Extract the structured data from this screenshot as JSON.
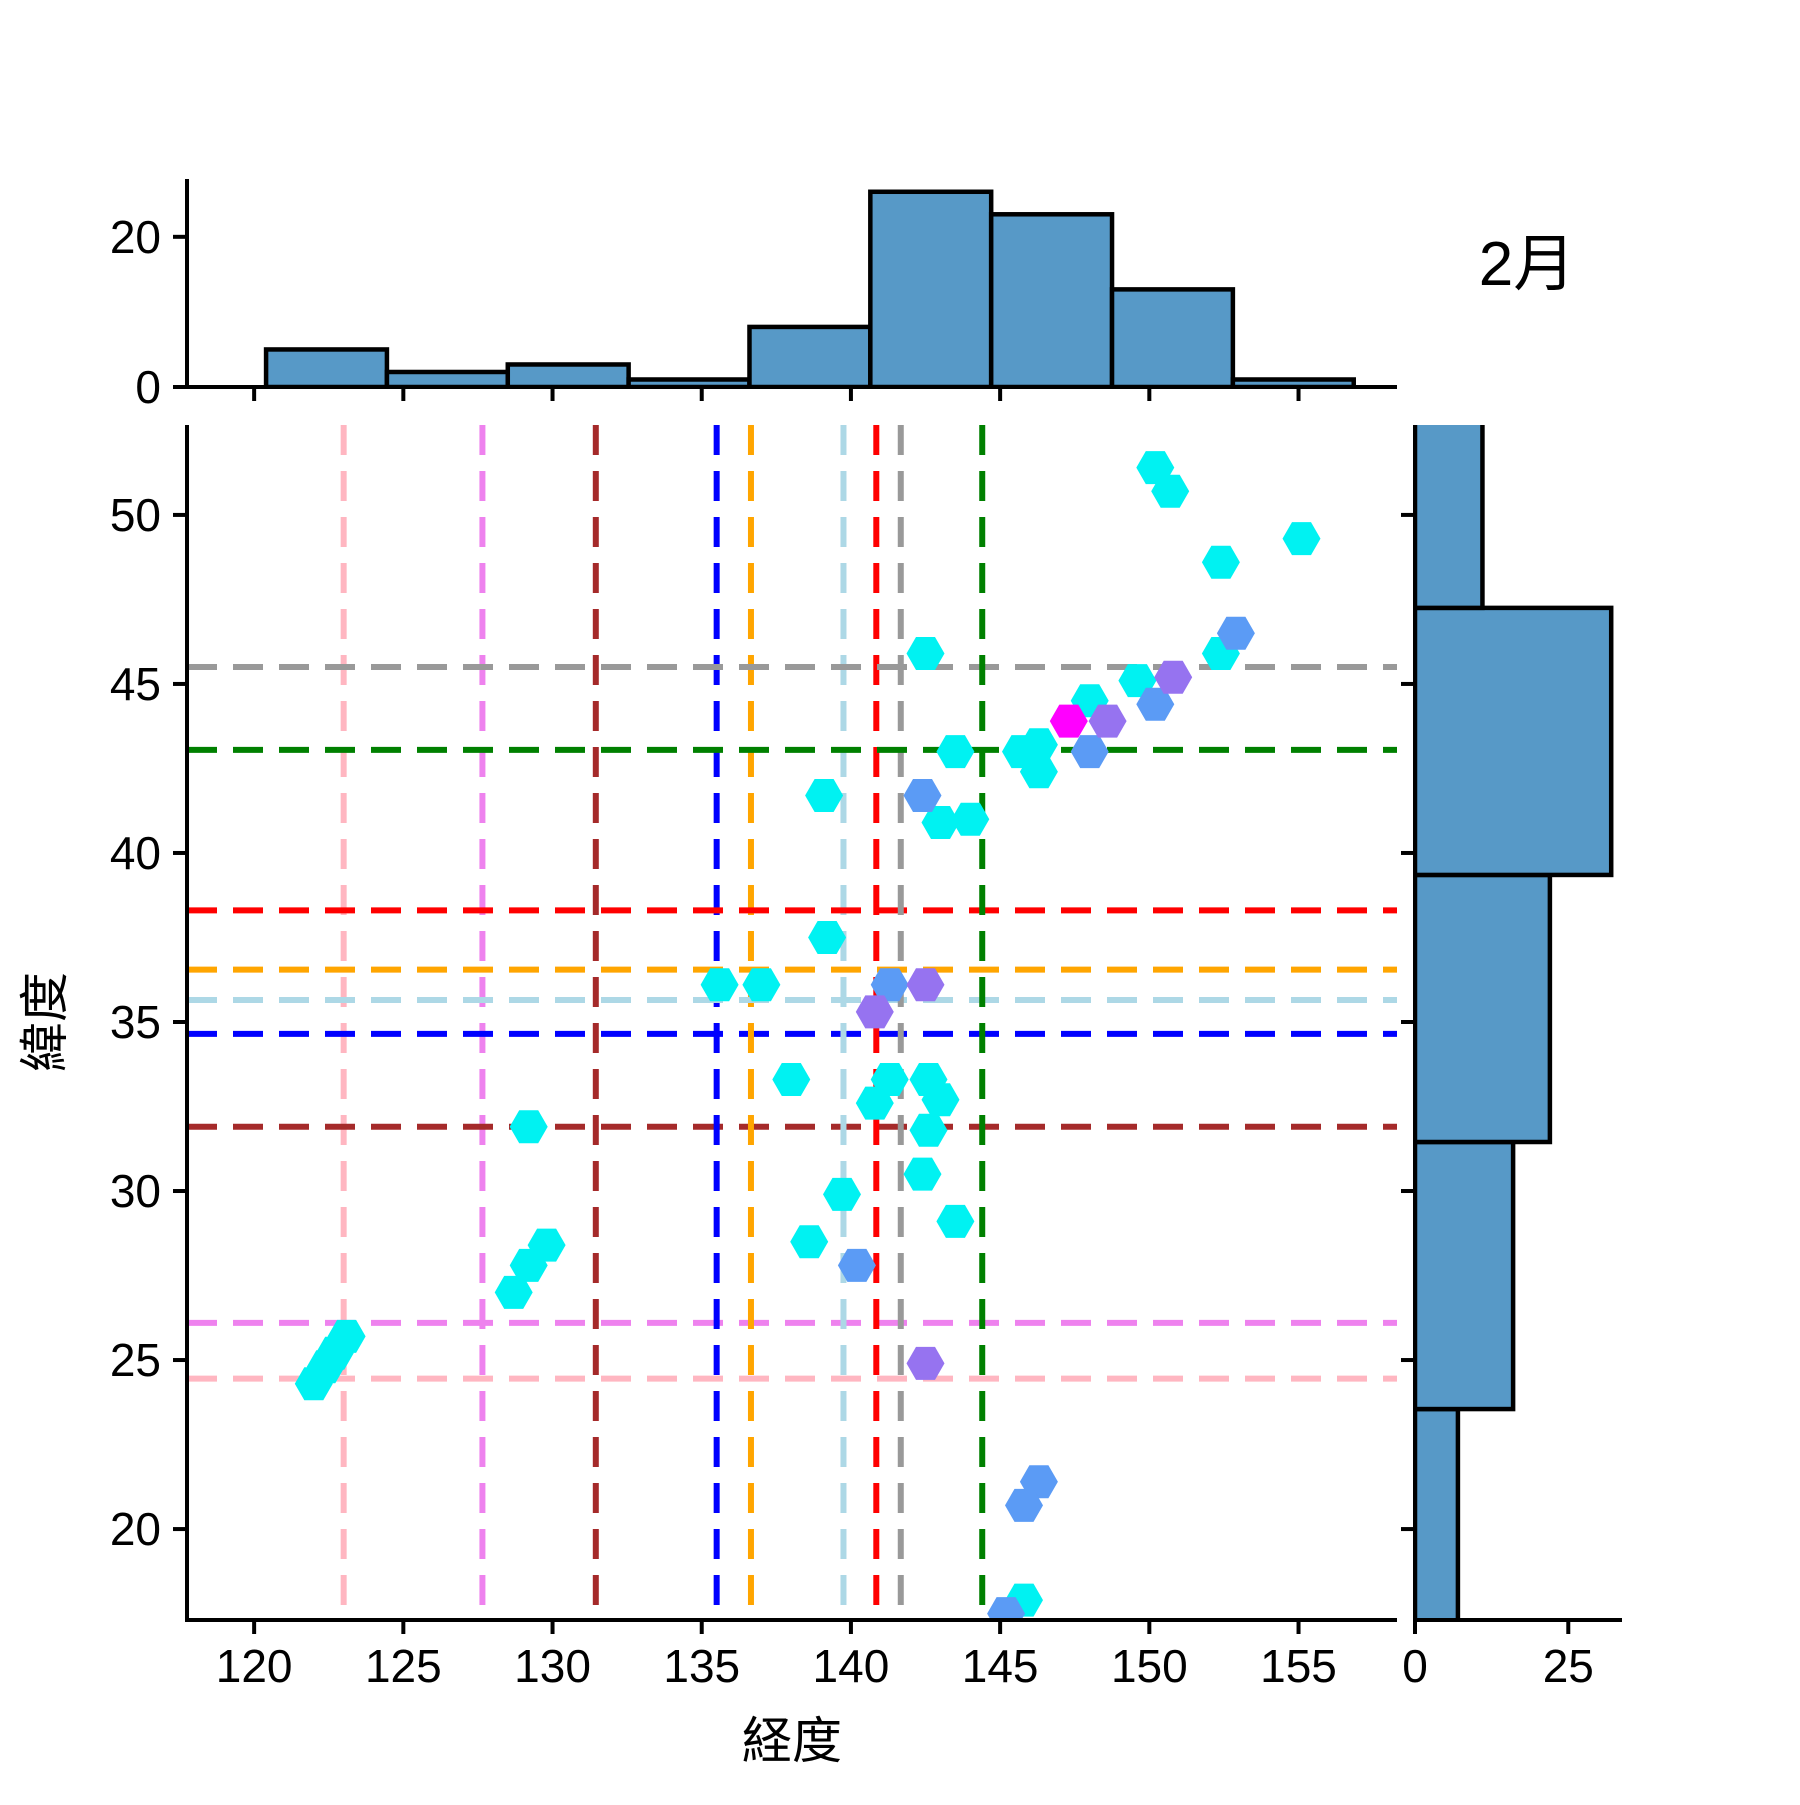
{
  "title": "2月",
  "chart_data": {
    "type": "scatter",
    "description": "jointplot: scatter with hexagon markers plus marginal histograms",
    "main": {
      "xlabel": "経度",
      "ylabel": "緯度",
      "xlim": [
        117.75,
        158.3
      ],
      "ylim": [
        17.31,
        52.66
      ],
      "xticks": [
        120,
        125,
        130,
        135,
        140,
        145,
        150,
        155
      ],
      "yticks": [
        20,
        25,
        30,
        35,
        40,
        45,
        50
      ],
      "grid": false,
      "crosshairs": [
        {
          "name": "pink",
          "color": "#FFB6C1",
          "x": 123.0,
          "y": 24.45
        },
        {
          "name": "violet",
          "color": "#EE82EE",
          "x": 127.65,
          "y": 26.1
        },
        {
          "name": "brown",
          "color": "#A52A2A",
          "x": 131.45,
          "y": 31.9
        },
        {
          "name": "blue",
          "color": "#0000FF",
          "x": 135.5,
          "y": 34.65
        },
        {
          "name": "orange",
          "color": "#FFA500",
          "x": 136.65,
          "y": 36.55
        },
        {
          "name": "lightblue",
          "color": "#ADD8E6",
          "x": 139.75,
          "y": 35.65
        },
        {
          "name": "red",
          "color": "#FF0000",
          "x": 140.85,
          "y": 38.3
        },
        {
          "name": "gray",
          "color": "#999999",
          "x": 141.67,
          "y": 45.5
        },
        {
          "name": "green",
          "color": "#008000",
          "x": 144.4,
          "y": 43.05
        }
      ],
      "series": [
        {
          "name": "cyan",
          "color": "#00F2F2",
          "points": [
            [
              150.2,
              51.4
            ],
            [
              150.7,
              50.7
            ],
            [
              155.1,
              49.3
            ],
            [
              152.4,
              48.6
            ],
            [
              152.4,
              45.9
            ],
            [
              149.6,
              45.1
            ],
            [
              148.0,
              44.5
            ],
            [
              142.5,
              45.9
            ],
            [
              146.3,
              43.2
            ],
            [
              145.7,
              43.0
            ],
            [
              146.3,
              42.4
            ],
            [
              143.5,
              43.0
            ],
            [
              139.1,
              41.7
            ],
            [
              143.0,
              40.9
            ],
            [
              144.0,
              41.0
            ],
            [
              139.2,
              37.5
            ],
            [
              135.6,
              36.1
            ],
            [
              137.0,
              36.1
            ],
            [
              138.0,
              33.3
            ],
            [
              141.3,
              33.3
            ],
            [
              142.6,
              33.3
            ],
            [
              140.8,
              32.6
            ],
            [
              143.0,
              32.7
            ],
            [
              142.6,
              31.8
            ],
            [
              142.4,
              30.5
            ],
            [
              139.7,
              29.9
            ],
            [
              143.5,
              29.1
            ],
            [
              138.6,
              28.5
            ],
            [
              129.2,
              31.9
            ],
            [
              129.8,
              28.4
            ],
            [
              129.2,
              27.8
            ],
            [
              128.7,
              27.0
            ],
            [
              123.1,
              25.7
            ],
            [
              122.7,
              25.2
            ],
            [
              122.4,
              24.8
            ],
            [
              122.0,
              24.3
            ],
            [
              145.8,
              17.9
            ]
          ]
        },
        {
          "name": "cornflower-blue",
          "color": "#5B9BF5",
          "points": [
            [
              152.9,
              46.5
            ],
            [
              150.2,
              44.4
            ],
            [
              148.0,
              43.0
            ],
            [
              142.4,
              41.7
            ],
            [
              141.3,
              36.1
            ],
            [
              140.2,
              27.8
            ],
            [
              146.3,
              21.4
            ],
            [
              145.8,
              20.7
            ],
            [
              145.2,
              17.5
            ]
          ]
        },
        {
          "name": "medium-purple",
          "color": "#9673F0",
          "points": [
            [
              150.8,
              45.2
            ],
            [
              148.6,
              43.9
            ],
            [
              142.5,
              36.1
            ],
            [
              140.8,
              35.3
            ],
            [
              142.5,
              24.9
            ]
          ]
        },
        {
          "name": "magenta",
          "color": "#FF00FF",
          "points": [
            [
              147.3,
              43.9
            ]
          ]
        }
      ]
    },
    "top_histogram": {
      "bin_edges": [
        120.4,
        124.45,
        128.5,
        132.55,
        136.6,
        140.65,
        144.7,
        148.75,
        152.8,
        156.85
      ],
      "counts": [
        5,
        2,
        3,
        1,
        8,
        26,
        23,
        13,
        1
      ],
      "ylim": [
        0,
        27.7
      ],
      "yticks": [
        0,
        20
      ],
      "bar_color": "#5799C7",
      "edge_color": "#000000"
    },
    "right_histogram": {
      "bin_edges": [
        15.65,
        23.55,
        31.45,
        39.35,
        47.25,
        55.15
      ],
      "counts": [
        7,
        16,
        22,
        32,
        11
      ],
      "xlim": [
        0,
        33.76
      ],
      "xticks": [
        0,
        25
      ],
      "bar_color": "#5799C7",
      "edge_color": "#000000"
    }
  }
}
